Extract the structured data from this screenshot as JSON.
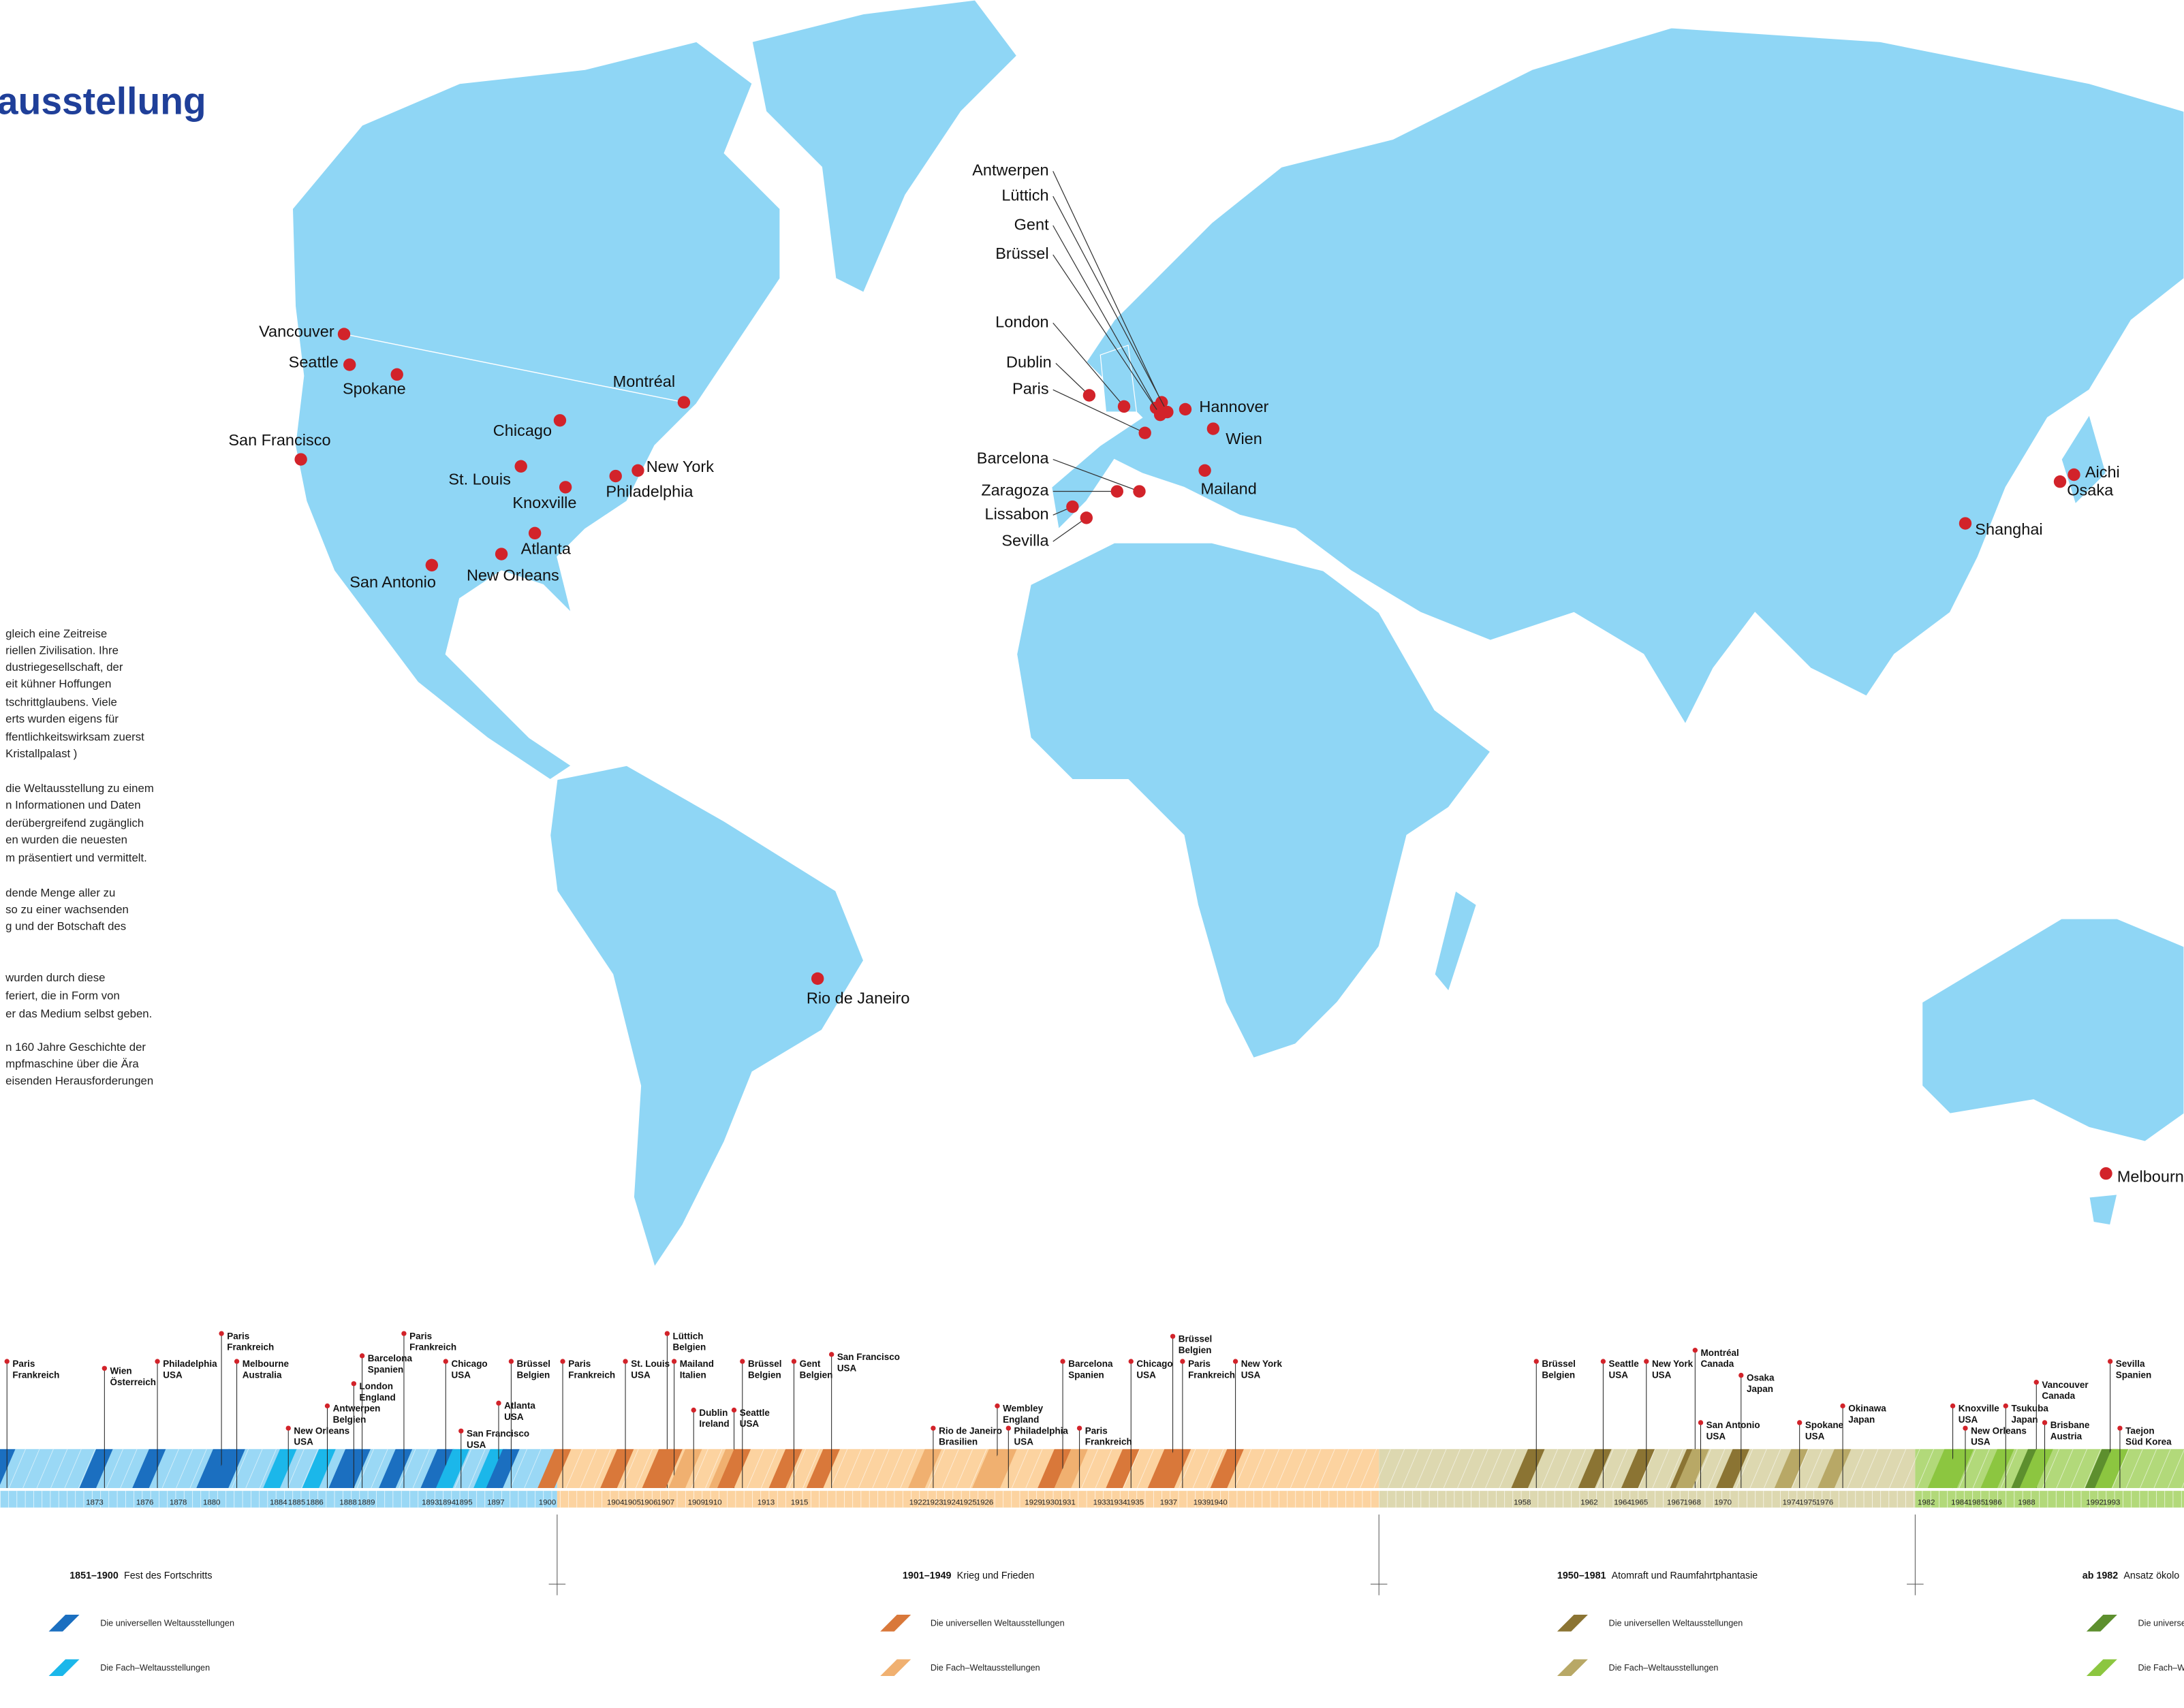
{
  "title": "ausstellung",
  "intro": {
    "lines": [
      "gleich eine Zeitreise",
      "riellen Zivilisation. Ihre",
      "dustriegesellschaft, der",
      "eit kühner Hoffungen",
      "tschrittglaubens. Viele",
      "erts wurden eigens für",
      "ffentlichkeitswirksam zuerst",
      " Kristallpalast )",
      "die Weltausstellung zu einem",
      "n Informationen und Daten",
      "derübergreifend zugänglich",
      "en wurden die neuesten",
      "m präsentiert und vermittelt.",
      "dende Menge aller zu",
      "so zu einer wachsenden",
      "g und der Botschaft des",
      " wurden durch diese",
      "feriert, die in Form von",
      "er das Medium selbst geben.",
      "n 160 Jahre Geschichte der",
      "mpfmaschine über die Ära",
      "eisenden Herausforderungen"
    ]
  },
  "map": {
    "cities": [
      "Vancouver",
      "Seattle",
      "Spokane",
      "Montréal",
      "Chicago",
      "San Francisco",
      "St. Louis",
      "New York",
      "Philadelphia",
      "Knoxville",
      "Atlanta",
      "New Orleans",
      "San Antonio",
      "Rio de Janeiro",
      "Antwerpen",
      "Lüttich",
      "Gent",
      "Brüssel",
      "London",
      "Dublin",
      "Paris",
      "Barcelona",
      "Zaragoza",
      "Lissabon",
      "Sevilla",
      "Hannover",
      "Wien",
      "Mailand",
      "Shanghai",
      "Aichi",
      "Osaka",
      "Melbourne"
    ]
  },
  "timeline": {
    "events": [
      {
        "city": "Paris",
        "country": "Frankreich"
      },
      {
        "city": "Wien",
        "country": "Österreich"
      },
      {
        "city": "Philadelphia",
        "country": "USA"
      },
      {
        "city": "Paris",
        "country": "Frankreich"
      },
      {
        "city": "Melbourne",
        "country": "Australia"
      },
      {
        "city": "New Orleans",
        "country": "USA"
      },
      {
        "city": "Antwerpen",
        "country": "Belgien"
      },
      {
        "city": "Barcelona",
        "country": "Spanien"
      },
      {
        "city": "London",
        "country": "England"
      },
      {
        "city": "Paris",
        "country": "Frankreich"
      },
      {
        "city": "Chicago",
        "country": "USA"
      },
      {
        "city": "San Francisco",
        "country": "USA"
      },
      {
        "city": "Atlanta",
        "country": "USA"
      },
      {
        "city": "Brüssel",
        "country": "Belgien"
      },
      {
        "city": "Paris",
        "country": "Frankreich"
      },
      {
        "city": "St. Louis",
        "country": "USA"
      },
      {
        "city": "Lüttich",
        "country": "Belgien"
      },
      {
        "city": "Mailand",
        "country": "Italien"
      },
      {
        "city": "Dublin",
        "country": "Ireland"
      },
      {
        "city": "Seattle",
        "country": "USA"
      },
      {
        "city": "Brüssel",
        "country": "Belgien"
      },
      {
        "city": "Gent",
        "country": "Belgien"
      },
      {
        "city": "San Francisco",
        "country": "USA"
      },
      {
        "city": "Rio de Janeiro",
        "country": "Brasilien"
      },
      {
        "city": "Wembley",
        "country": "England"
      },
      {
        "city": "Philadelphia",
        "country": "USA"
      },
      {
        "city": "Barcelona",
        "country": "Spanien"
      },
      {
        "city": "Paris",
        "country": "Frankreich"
      },
      {
        "city": "Chicago",
        "country": "USA"
      },
      {
        "city": "Brüssel",
        "country": "Belgien"
      },
      {
        "city": "Paris",
        "country": "Frankreich"
      },
      {
        "city": "New York",
        "country": "USA"
      },
      {
        "city": "Brüssel",
        "country": "Belgien"
      },
      {
        "city": "Seattle",
        "country": "USA"
      },
      {
        "city": "New York",
        "country": "USA"
      },
      {
        "city": "Montréal",
        "country": "Canada"
      },
      {
        "city": "San Antonio",
        "country": "USA"
      },
      {
        "city": "Osaka",
        "country": "Japan"
      },
      {
        "city": "Spokane",
        "country": "USA"
      },
      {
        "city": "Okinawa",
        "country": "Japan"
      },
      {
        "city": "Knoxville",
        "country": "USA"
      },
      {
        "city": "New Orleans",
        "country": "USA"
      },
      {
        "city": "Tsukuba",
        "country": "Japan"
      },
      {
        "city": "Vancouver",
        "country": "Canada"
      },
      {
        "city": "Brisbane",
        "country": "Austria"
      },
      {
        "city": "Sevilla",
        "country": "Spanien"
      },
      {
        "city": "Taejon",
        "country": "Süd Korea"
      }
    ],
    "years": [
      "1873",
      "1876",
      "1878",
      "1880",
      "1884",
      "1885",
      "1886",
      "1888",
      "1889",
      "1893",
      "1894",
      "1895",
      "1897",
      "1900",
      "1904",
      "1905",
      "1906",
      "1907",
      "1909",
      "1910",
      "1913",
      "1915",
      "1922",
      "1923",
      "1924",
      "1925",
      "1926",
      "1929",
      "1930",
      "1931",
      "1933",
      "1934",
      "1935",
      "1937",
      "1939",
      "1940",
      "1958",
      "1962",
      "1964",
      "1965",
      "1967",
      "1968",
      "1970",
      "1974",
      "1975",
      "1976",
      "1982",
      "1984",
      "1985",
      "1986",
      "1988",
      "1992",
      "1993"
    ],
    "eras": [
      {
        "span": "1851–1900",
        "name": "Fest des Fortschritts",
        "legend": [
          "Die universellen Weltausstellungen",
          "Die Fach–Weltausstellungen"
        ]
      },
      {
        "span": "1901–1949",
        "name": "Krieg und Frieden",
        "legend": [
          "Die universellen Weltausstellungen",
          "Die Fach–Weltausstellungen"
        ]
      },
      {
        "span": "1950–1981",
        "name": "Atomraft und Raumfahrtphantasie",
        "legend": [
          "Die universellen Weltausstellungen",
          "Die Fach–Weltausstellungen"
        ]
      },
      {
        "span": "ab 1982",
        "name": "Ansatz ökolo",
        "legend": [
          "Die universelle",
          "Die Fach–We"
        ]
      }
    ]
  }
}
